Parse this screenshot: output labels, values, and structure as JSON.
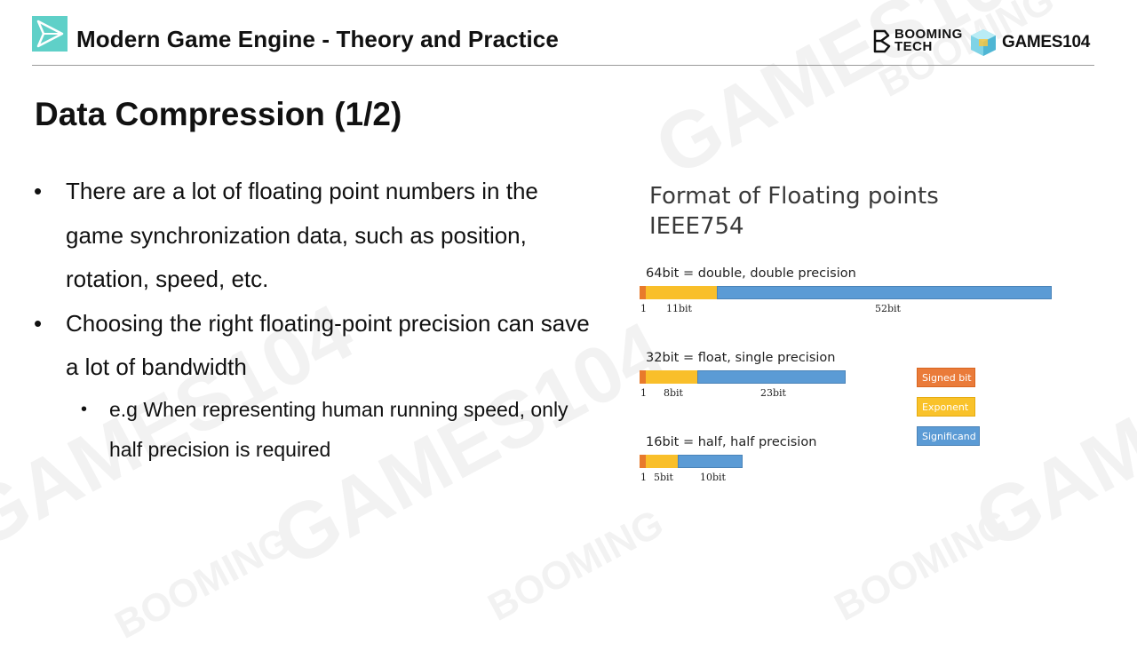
{
  "header": {
    "title": "Modern Game Engine - Theory and Practice",
    "brand_booming": "BOOMING TECH",
    "brand_games": "GAMES104"
  },
  "slide": {
    "title": "Data Compression (1/2)",
    "bullets": [
      "There are a lot of floating point numbers in the game synchronization data, such as position, rotation, speed, etc.",
      "Choosing the right floating-point precision can save a lot of bandwidth"
    ],
    "sub_bullets": [
      "e.g When representing human running speed, only half precision is required"
    ],
    "bullet_marker": "•"
  },
  "figure": {
    "title_line1": "Format of Floating points",
    "title_line2": "IEEE754",
    "formats": [
      {
        "label": "64bit = double, double precision",
        "sign_bits": 1,
        "exponent_bits": 11,
        "significand_bits": 52,
        "sign_label": "1",
        "exponent_label": "11bit",
        "significand_label": "52bit"
      },
      {
        "label": "32bit = float, single precision",
        "sign_bits": 1,
        "exponent_bits": 8,
        "significand_bits": 23,
        "sign_label": "1",
        "exponent_label": "8bit",
        "significand_label": "23bit"
      },
      {
        "label": "16bit = half, half precision",
        "sign_bits": 1,
        "exponent_bits": 5,
        "significand_bits": 10,
        "sign_label": "1",
        "exponent_label": "5bit",
        "significand_label": "10bit"
      }
    ],
    "legend": {
      "signed": "Signed bit",
      "exponent": "Exponent",
      "significand": "Significand"
    },
    "colors": {
      "sign": "#e87a2b",
      "exponent": "#f9bf2a",
      "significand": "#5b9bd5"
    }
  },
  "watermark": {
    "text_games": "GAMES104",
    "text_booming": "BOOMING TECH"
  }
}
